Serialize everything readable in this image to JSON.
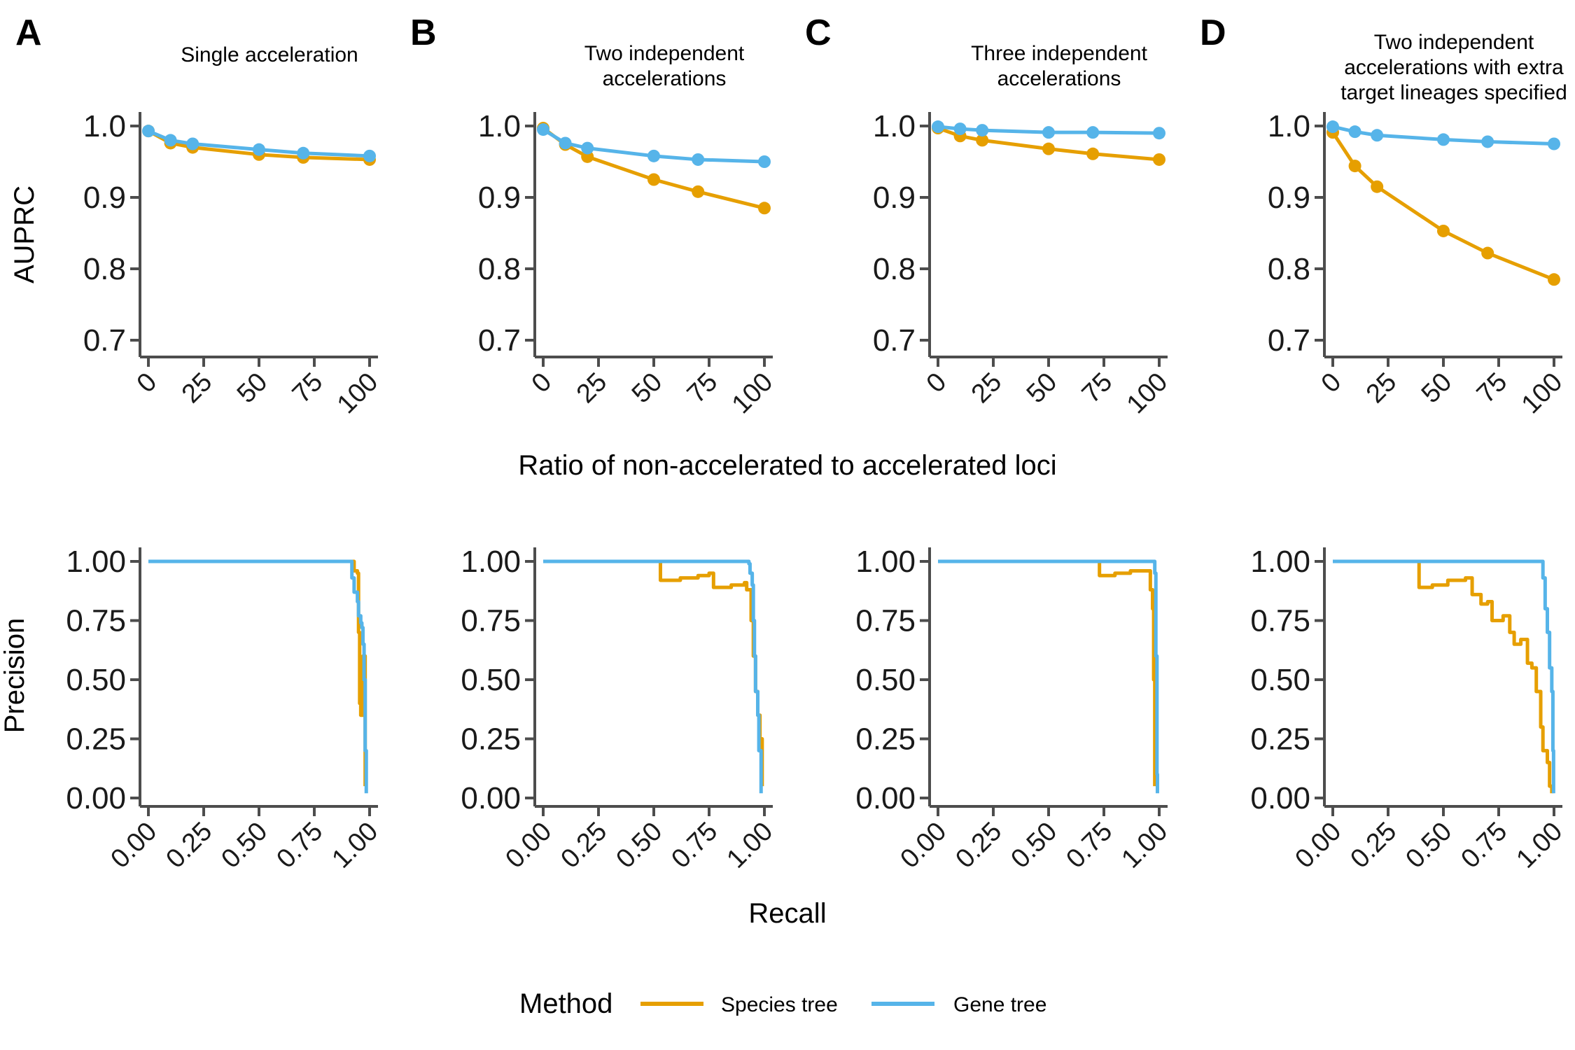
{
  "figure": {
    "panels": [
      {
        "letter": "A",
        "title_lines": [
          "Single acceleration"
        ]
      },
      {
        "letter": "B",
        "title_lines": [
          "Two independent",
          "accelerations"
        ]
      },
      {
        "letter": "C",
        "title_lines": [
          "Three independent",
          "accelerations"
        ]
      },
      {
        "letter": "D",
        "title_lines": [
          "Two independent",
          "accelerations with extra",
          "target lineages specified"
        ]
      }
    ],
    "top_ylabel": "AUPRC",
    "top_xlabel": "Ratio of non-accelerated to accelerated loci",
    "bottom_ylabel": "Precision",
    "bottom_xlabel": "Recall",
    "legend": {
      "title": "Method",
      "entries": [
        {
          "label": "Species tree",
          "color": "#E69F00"
        },
        {
          "label": "Gene tree",
          "color": "#56B4E9"
        }
      ]
    }
  },
  "chart_data": [
    {
      "type": "line",
      "panel": "A",
      "row": "top",
      "xticks": [
        "0",
        "25",
        "50",
        "75",
        "100"
      ],
      "yticks": [
        "0.7",
        "0.8",
        "0.9",
        "1.0"
      ],
      "xlim": [
        0,
        100
      ],
      "ylim": [
        0.7,
        1.0
      ],
      "x": [
        0,
        10,
        20,
        50,
        70,
        100
      ],
      "series": [
        {
          "name": "Species tree",
          "values": [
            0.993,
            0.976,
            0.97,
            0.96,
            0.956,
            0.953
          ]
        },
        {
          "name": "Gene tree",
          "values": [
            0.993,
            0.98,
            0.975,
            0.967,
            0.962,
            0.958
          ]
        }
      ]
    },
    {
      "type": "line",
      "panel": "B",
      "row": "top",
      "xticks": [
        "0",
        "25",
        "50",
        "75",
        "100"
      ],
      "yticks": [
        "0.7",
        "0.8",
        "0.9",
        "1.0"
      ],
      "xlim": [
        0,
        100
      ],
      "ylim": [
        0.7,
        1.0
      ],
      "x": [
        0,
        10,
        20,
        50,
        70,
        100
      ],
      "series": [
        {
          "name": "Species tree",
          "values": [
            0.997,
            0.974,
            0.957,
            0.925,
            0.908,
            0.885
          ]
        },
        {
          "name": "Gene tree",
          "values": [
            0.995,
            0.976,
            0.969,
            0.958,
            0.953,
            0.95
          ]
        }
      ]
    },
    {
      "type": "line",
      "panel": "C",
      "row": "top",
      "xticks": [
        "0",
        "25",
        "50",
        "75",
        "100"
      ],
      "yticks": [
        "0.7",
        "0.8",
        "0.9",
        "1.0"
      ],
      "xlim": [
        0,
        100
      ],
      "ylim": [
        0.7,
        1.0
      ],
      "x": [
        0,
        10,
        20,
        50,
        70,
        100
      ],
      "series": [
        {
          "name": "Species tree",
          "values": [
            0.997,
            0.986,
            0.98,
            0.968,
            0.961,
            0.953
          ]
        },
        {
          "name": "Gene tree",
          "values": [
            0.999,
            0.996,
            0.994,
            0.991,
            0.991,
            0.99
          ]
        }
      ]
    },
    {
      "type": "line",
      "panel": "D",
      "row": "top",
      "xticks": [
        "0",
        "25",
        "50",
        "75",
        "100"
      ],
      "yticks": [
        "0.7",
        "0.8",
        "0.9",
        "1.0"
      ],
      "xlim": [
        0,
        100
      ],
      "ylim": [
        0.7,
        1.0
      ],
      "x": [
        0,
        10,
        20,
        50,
        70,
        100
      ],
      "series": [
        {
          "name": "Species tree",
          "values": [
            0.991,
            0.944,
            0.915,
            0.853,
            0.822,
            0.785
          ]
        },
        {
          "name": "Gene tree",
          "values": [
            0.999,
            0.992,
            0.987,
            0.981,
            0.978,
            0.975
          ]
        }
      ]
    },
    {
      "type": "line",
      "panel": "A",
      "row": "bottom",
      "step": true,
      "xticks": [
        "0.00",
        "0.25",
        "0.50",
        "0.75",
        "1.00"
      ],
      "yticks": [
        "0.00",
        "0.25",
        "0.50",
        "0.75",
        "1.00"
      ],
      "xlim": [
        0,
        1
      ],
      "ylim": [
        0,
        1
      ],
      "series": [
        {
          "name": "Species tree",
          "points": [
            [
              0,
              1
            ],
            [
              0.92,
              1
            ],
            [
              0.93,
              0.96
            ],
            [
              0.945,
              0.95
            ],
            [
              0.95,
              0.7
            ],
            [
              0.955,
              0.4
            ],
            [
              0.96,
              0.35
            ],
            [
              0.97,
              0.6
            ],
            [
              0.98,
              0.05
            ]
          ]
        },
        {
          "name": "Gene tree",
          "points": [
            [
              0,
              1
            ],
            [
              0.9,
              1
            ],
            [
              0.92,
              0.93
            ],
            [
              0.93,
              0.87
            ],
            [
              0.945,
              0.83
            ],
            [
              0.95,
              0.77
            ],
            [
              0.96,
              0.74
            ],
            [
              0.965,
              0.72
            ],
            [
              0.97,
              0.65
            ],
            [
              0.975,
              0.5
            ],
            [
              0.98,
              0.2
            ],
            [
              0.985,
              0.02
            ]
          ]
        }
      ]
    },
    {
      "type": "line",
      "panel": "B",
      "row": "bottom",
      "step": true,
      "xticks": [
        "0.00",
        "0.25",
        "0.50",
        "0.75",
        "1.00"
      ],
      "yticks": [
        "0.00",
        "0.25",
        "0.50",
        "0.75",
        "1.00"
      ],
      "xlim": [
        0,
        1
      ],
      "ylim": [
        0,
        1
      ],
      "series": [
        {
          "name": "Species tree",
          "points": [
            [
              0,
              1
            ],
            [
              0.52,
              1
            ],
            [
              0.53,
              0.92
            ],
            [
              0.62,
              0.93
            ],
            [
              0.7,
              0.94
            ],
            [
              0.75,
              0.95
            ],
            [
              0.77,
              0.89
            ],
            [
              0.85,
              0.9
            ],
            [
              0.91,
              0.91
            ],
            [
              0.92,
              0.88
            ],
            [
              0.94,
              0.75
            ],
            [
              0.95,
              0.6
            ],
            [
              0.96,
              0.45
            ],
            [
              0.97,
              0.35
            ],
            [
              0.98,
              0.25
            ],
            [
              0.99,
              0.05
            ]
          ]
        },
        {
          "name": "Gene tree",
          "points": [
            [
              0,
              1
            ],
            [
              0.9,
              1
            ],
            [
              0.93,
              0.99
            ],
            [
              0.935,
              0.95
            ],
            [
              0.945,
              0.9
            ],
            [
              0.95,
              0.75
            ],
            [
              0.955,
              0.6
            ],
            [
              0.96,
              0.45
            ],
            [
              0.97,
              0.35
            ],
            [
              0.975,
              0.2
            ],
            [
              0.985,
              0.02
            ]
          ]
        }
      ]
    },
    {
      "type": "line",
      "panel": "C",
      "row": "bottom",
      "step": true,
      "xticks": [
        "0.00",
        "0.25",
        "0.50",
        "0.75",
        "1.00"
      ],
      "yticks": [
        "0.00",
        "0.25",
        "0.50",
        "0.75",
        "1.00"
      ],
      "xlim": [
        0,
        1
      ],
      "ylim": [
        0,
        1
      ],
      "series": [
        {
          "name": "Species tree",
          "points": [
            [
              0,
              1
            ],
            [
              0.72,
              1
            ],
            [
              0.73,
              0.94
            ],
            [
              0.8,
              0.95
            ],
            [
              0.87,
              0.96
            ],
            [
              0.95,
              0.96
            ],
            [
              0.96,
              0.88
            ],
            [
              0.97,
              0.8
            ],
            [
              0.975,
              0.5
            ],
            [
              0.98,
              0.05
            ]
          ]
        },
        {
          "name": "Gene tree",
          "points": [
            [
              0,
              1
            ],
            [
              0.97,
              1
            ],
            [
              0.98,
              0.95
            ],
            [
              0.985,
              0.6
            ],
            [
              0.99,
              0.1
            ],
            [
              0.992,
              0.02
            ]
          ]
        }
      ]
    },
    {
      "type": "line",
      "panel": "D",
      "row": "bottom",
      "step": true,
      "xticks": [
        "0.00",
        "0.25",
        "0.50",
        "0.75",
        "1.00"
      ],
      "yticks": [
        "0.00",
        "0.25",
        "0.50",
        "0.75",
        "1.00"
      ],
      "xlim": [
        0,
        1
      ],
      "ylim": [
        0,
        1
      ],
      "series": [
        {
          "name": "Species tree",
          "points": [
            [
              0,
              1
            ],
            [
              0.38,
              1
            ],
            [
              0.39,
              0.89
            ],
            [
              0.45,
              0.9
            ],
            [
              0.52,
              0.92
            ],
            [
              0.6,
              0.93
            ],
            [
              0.63,
              0.86
            ],
            [
              0.67,
              0.82
            ],
            [
              0.7,
              0.83
            ],
            [
              0.72,
              0.75
            ],
            [
              0.77,
              0.77
            ],
            [
              0.8,
              0.7
            ],
            [
              0.82,
              0.65
            ],
            [
              0.85,
              0.67
            ],
            [
              0.88,
              0.57
            ],
            [
              0.9,
              0.55
            ],
            [
              0.92,
              0.45
            ],
            [
              0.94,
              0.3
            ],
            [
              0.95,
              0.2
            ],
            [
              0.97,
              0.15
            ],
            [
              0.98,
              0.05
            ],
            [
              0.99,
              0.02
            ]
          ]
        },
        {
          "name": "Gene tree",
          "points": [
            [
              0,
              1
            ],
            [
              0.93,
              1
            ],
            [
              0.95,
              0.93
            ],
            [
              0.96,
              0.8
            ],
            [
              0.97,
              0.7
            ],
            [
              0.98,
              0.55
            ],
            [
              0.99,
              0.45
            ],
            [
              0.995,
              0.2
            ],
            [
              0.998,
              0.02
            ]
          ]
        }
      ]
    }
  ]
}
